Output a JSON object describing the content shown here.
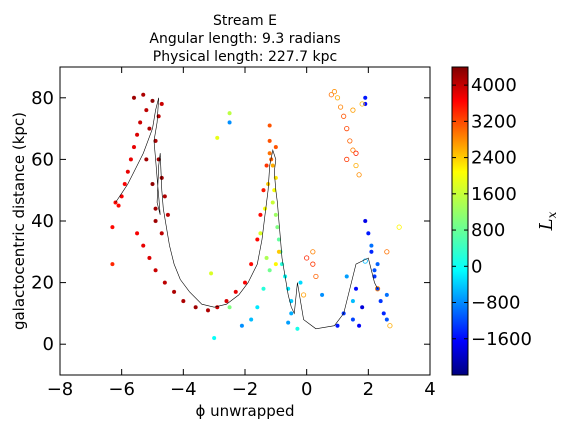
{
  "chart_data": {
    "type": "scatter",
    "title": [
      "Stream E",
      "Angular length: 9.3 radians",
      "Physical length: 227.7 kpc"
    ],
    "xlabel": "ϕ unwrapped",
    "ylabel": "galactocentric distance (kpc)",
    "xlim": [
      -8,
      4
    ],
    "ylim": [
      -10,
      90
    ],
    "xticks": [
      -8,
      -6,
      -4,
      -2,
      0,
      2,
      4
    ],
    "xtick_labels": [
      "−8",
      "−6",
      "−4",
      "−2",
      "0",
      "2",
      "4"
    ],
    "yticks": [
      0,
      20,
      40,
      60,
      80
    ],
    "ytick_labels": [
      "0",
      "20",
      "40",
      "60",
      "80"
    ],
    "grid": false,
    "colorbar": {
      "label": "L_x",
      "label_text": "L",
      "label_sub": "x",
      "range": [
        -2400,
        4400
      ],
      "ticks": [
        -1600,
        -800,
        0,
        800,
        1600,
        2400,
        3200,
        4000
      ],
      "tick_labels": [
        "−1600",
        "−800",
        "0",
        "800",
        "1600",
        "2400",
        "3200",
        "4000"
      ],
      "colormap": "jet"
    },
    "series": [
      {
        "marker": "filled",
        "points": [
          [
            -5.6,
            80,
            4200
          ],
          [
            -5.3,
            81,
            4100
          ],
          [
            -5.0,
            79,
            4300
          ],
          [
            -5.2,
            76,
            4000
          ],
          [
            -5.4,
            72,
            3900
          ],
          [
            -5.5,
            68,
            3800
          ],
          [
            -5.6,
            64,
            3700
          ],
          [
            -5.7,
            60,
            3700
          ],
          [
            -5.8,
            56,
            3700
          ],
          [
            -5.9,
            52,
            3600
          ],
          [
            -6.0,
            48,
            3600
          ],
          [
            -6.1,
            45,
            3500
          ],
          [
            -6.2,
            46,
            3500
          ],
          [
            -6.3,
            38,
            3500
          ],
          [
            -6.3,
            26,
            3300
          ],
          [
            -5.5,
            36,
            3600
          ],
          [
            -5.3,
            32,
            3700
          ],
          [
            -5.1,
            28,
            3800
          ],
          [
            -4.9,
            24,
            3900
          ],
          [
            -4.6,
            20,
            4000
          ],
          [
            -4.3,
            17,
            4100
          ],
          [
            -4.0,
            14,
            4100
          ],
          [
            -3.6,
            12,
            4200
          ],
          [
            -3.2,
            11,
            4100
          ],
          [
            -2.9,
            12,
            3900
          ],
          [
            -2.6,
            14,
            3800
          ],
          [
            -2.3,
            17,
            3700
          ],
          [
            -2.0,
            20,
            3600
          ],
          [
            -1.8,
            26,
            3500
          ],
          [
            -1.6,
            34,
            3500
          ],
          [
            -1.5,
            42,
            3500
          ],
          [
            -1.4,
            50,
            3400
          ],
          [
            -1.3,
            58,
            3200
          ],
          [
            -1.2,
            66,
            3000
          ],
          [
            -1.2,
            71,
            3000
          ],
          [
            -4.9,
            66,
            4100
          ],
          [
            -4.8,
            60,
            4200
          ],
          [
            -4.7,
            54,
            4200
          ],
          [
            -4.6,
            48,
            4100
          ],
          [
            -4.5,
            42,
            4000
          ],
          [
            -4.9,
            44,
            4200
          ],
          [
            -4.7,
            36,
            4000
          ],
          [
            -5.1,
            70,
            4100
          ],
          [
            -4.8,
            74,
            4000
          ],
          [
            -4.7,
            78,
            3900
          ],
          [
            -5.2,
            60,
            4200
          ],
          [
            -5.0,
            52,
            4300
          ],
          [
            -4.9,
            40,
            4200
          ]
        ]
      },
      {
        "marker": "filled",
        "points": [
          [
            -1.2,
            62,
            2800
          ],
          [
            -1.1,
            58,
            2400
          ],
          [
            -1.0,
            54,
            2000
          ],
          [
            -1.05,
            50,
            1800
          ],
          [
            -1.1,
            46,
            1500
          ],
          [
            -1.0,
            42,
            1200
          ],
          [
            -0.95,
            38,
            1000
          ],
          [
            -0.9,
            34,
            800
          ],
          [
            -0.85,
            30,
            600
          ],
          [
            -0.8,
            26,
            400
          ],
          [
            -0.7,
            22,
            200
          ],
          [
            -0.6,
            18,
            0
          ],
          [
            -0.5,
            14,
            -200
          ],
          [
            -0.5,
            10,
            -400
          ],
          [
            -0.6,
            7,
            -500
          ],
          [
            -1.3,
            28,
            1300
          ],
          [
            -1.2,
            24,
            900
          ],
          [
            -1.4,
            18,
            400
          ],
          [
            -1.6,
            12,
            0
          ],
          [
            -1.8,
            8,
            -300
          ],
          [
            -2.1,
            6,
            -600
          ],
          [
            -3.0,
            2,
            200
          ],
          [
            -2.5,
            12,
            1000
          ],
          [
            -0.3,
            5,
            300
          ],
          [
            -1.0,
            64,
            3000
          ],
          [
            -1.15,
            60,
            2900
          ],
          [
            -1.25,
            52,
            2200
          ],
          [
            -1.35,
            44,
            1800
          ],
          [
            -1.5,
            36,
            1600
          ],
          [
            -2.9,
            67,
            1700
          ],
          [
            -2.5,
            75,
            1400
          ],
          [
            -2.5,
            72,
            -600
          ],
          [
            -3.1,
            23,
            1600
          ],
          [
            -0.9,
            30,
            2200
          ],
          [
            -1.0,
            26,
            1900
          ]
        ]
      },
      {
        "marker": "filled",
        "points": [
          [
            1.9,
            80,
            -1400
          ],
          [
            1.9,
            78,
            -1500
          ],
          [
            1.9,
            40,
            -1700
          ],
          [
            2.0,
            36,
            -1400
          ],
          [
            2.1,
            30,
            -1300
          ],
          [
            2.2,
            22,
            -1200
          ],
          [
            2.3,
            18,
            -1100
          ],
          [
            2.4,
            14,
            -1200
          ],
          [
            2.5,
            10,
            -1300
          ],
          [
            2.6,
            8,
            -1000
          ],
          [
            1.6,
            18,
            -1500
          ],
          [
            1.8,
            12,
            -1800
          ],
          [
            1.7,
            6,
            -1600
          ],
          [
            1.2,
            10,
            -1200
          ],
          [
            1.0,
            6,
            -1400
          ],
          [
            2.2,
            24,
            -1000
          ],
          [
            2.3,
            26,
            -900
          ],
          [
            2.6,
            16,
            -800
          ],
          [
            2.1,
            32,
            -800
          ],
          [
            1.5,
            8,
            -1100
          ],
          [
            1.3,
            22,
            -500
          ],
          [
            1.5,
            14,
            -300
          ],
          [
            0.5,
            16,
            -600
          ],
          [
            -0.2,
            20,
            -100
          ]
        ]
      },
      {
        "marker": "hollow",
        "points": [
          [
            0.8,
            81,
            2800
          ],
          [
            0.9,
            82,
            2600
          ],
          [
            1.0,
            80,
            2400
          ],
          [
            1.1,
            77,
            2700
          ],
          [
            1.2,
            74,
            3000
          ],
          [
            1.3,
            70,
            3100
          ],
          [
            1.4,
            66,
            2900
          ],
          [
            1.5,
            63,
            2700
          ],
          [
            1.6,
            58,
            2400
          ],
          [
            1.7,
            55,
            2600
          ],
          [
            1.5,
            76,
            2500
          ],
          [
            1.8,
            78,
            2300
          ],
          [
            1.3,
            60,
            3200
          ],
          [
            1.6,
            62,
            3300
          ],
          [
            0.2,
            26,
            3200
          ],
          [
            0.0,
            28,
            3300
          ],
          [
            0.3,
            22,
            2900
          ],
          [
            -0.1,
            16,
            2500
          ],
          [
            0.2,
            30,
            2700
          ],
          [
            1.9,
            27,
            -300
          ],
          [
            2.3,
            18,
            2700
          ],
          [
            2.7,
            6,
            2400
          ],
          [
            3.0,
            38,
            1900
          ],
          [
            2.6,
            30,
            2800
          ]
        ]
      }
    ],
    "track_line": [
      [
        -6.2,
        46
      ],
      [
        -6.0,
        49
      ],
      [
        -5.8,
        52
      ],
      [
        -5.6,
        56
      ],
      [
        -5.3,
        62
      ],
      [
        -5.0,
        70
      ],
      [
        -4.9,
        76
      ],
      [
        -4.8,
        80
      ],
      [
        -4.85,
        72
      ],
      [
        -4.95,
        66
      ],
      [
        -4.9,
        60
      ],
      [
        -4.85,
        54
      ],
      [
        -4.8,
        48
      ],
      [
        -4.75,
        42
      ],
      [
        -4.85,
        46
      ],
      [
        -4.8,
        58
      ],
      [
        -4.75,
        62
      ],
      [
        -4.7,
        50
      ],
      [
        -4.65,
        44
      ],
      [
        -4.55,
        38
      ],
      [
        -4.45,
        32
      ],
      [
        -4.3,
        26
      ],
      [
        -4.1,
        21
      ],
      [
        -3.8,
        17
      ],
      [
        -3.4,
        13
      ],
      [
        -3.0,
        12
      ],
      [
        -2.6,
        13
      ],
      [
        -2.2,
        16
      ],
      [
        -1.9,
        20
      ],
      [
        -1.6,
        26
      ],
      [
        -1.45,
        34
      ],
      [
        -1.35,
        42
      ],
      [
        -1.25,
        50
      ],
      [
        -1.2,
        58
      ],
      [
        -1.1,
        63
      ],
      [
        -1.0,
        60
      ],
      [
        -1.05,
        56
      ],
      [
        -1.0,
        50
      ],
      [
        -0.95,
        46
      ],
      [
        -0.9,
        40
      ],
      [
        -0.85,
        34
      ],
      [
        -0.8,
        28
      ],
      [
        -0.7,
        22
      ],
      [
        -0.6,
        16
      ],
      [
        -0.5,
        12
      ],
      [
        -0.4,
        10
      ],
      [
        -0.3,
        20
      ],
      [
        -0.1,
        8
      ],
      [
        0.3,
        5
      ],
      [
        0.9,
        6
      ],
      [
        1.2,
        10
      ],
      [
        1.6,
        26
      ],
      [
        2.0,
        28
      ],
      [
        2.2,
        20
      ],
      [
        2.3,
        18
      ]
    ]
  }
}
